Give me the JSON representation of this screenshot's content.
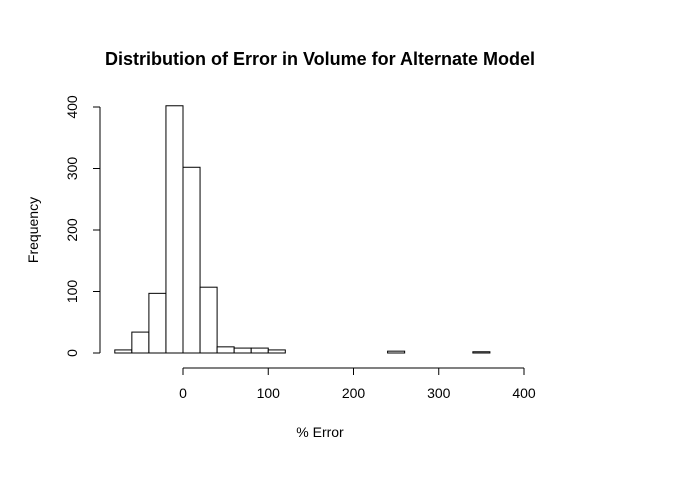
{
  "chart_data": {
    "type": "bar",
    "title": "Distribution of Error in Volume for Alternate Model",
    "xlabel": "% Error",
    "ylabel": "Frequency",
    "xlim": [
      -80,
      400
    ],
    "ylim": [
      0,
      400
    ],
    "x_ticks": [
      "0",
      "100",
      "200",
      "300",
      "400"
    ],
    "y_ticks": [
      "0",
      "100",
      "200",
      "300",
      "400"
    ],
    "bins": [
      {
        "start": -80,
        "end": -60,
        "count": 5
      },
      {
        "start": -60,
        "end": -40,
        "count": 34
      },
      {
        "start": -40,
        "end": -20,
        "count": 97
      },
      {
        "start": -20,
        "end": 0,
        "count": 402
      },
      {
        "start": 0,
        "end": 20,
        "count": 302
      },
      {
        "start": 20,
        "end": 40,
        "count": 107
      },
      {
        "start": 40,
        "end": 60,
        "count": 10
      },
      {
        "start": 60,
        "end": 80,
        "count": 8
      },
      {
        "start": 80,
        "end": 100,
        "count": 8
      },
      {
        "start": 100,
        "end": 120,
        "count": 5
      },
      {
        "start": 120,
        "end": 140,
        "count": 0
      },
      {
        "start": 140,
        "end": 160,
        "count": 0
      },
      {
        "start": 160,
        "end": 180,
        "count": 0
      },
      {
        "start": 180,
        "end": 200,
        "count": 0
      },
      {
        "start": 200,
        "end": 220,
        "count": 0
      },
      {
        "start": 220,
        "end": 240,
        "count": 0
      },
      {
        "start": 240,
        "end": 260,
        "count": 3
      },
      {
        "start": 260,
        "end": 280,
        "count": 0
      },
      {
        "start": 280,
        "end": 300,
        "count": 0
      },
      {
        "start": 300,
        "end": 320,
        "count": 0
      },
      {
        "start": 320,
        "end": 340,
        "count": 0
      },
      {
        "start": 340,
        "end": 360,
        "count": 2
      },
      {
        "start": 360,
        "end": 380,
        "count": 0
      },
      {
        "start": 380,
        "end": 400,
        "count": 0
      }
    ]
  }
}
